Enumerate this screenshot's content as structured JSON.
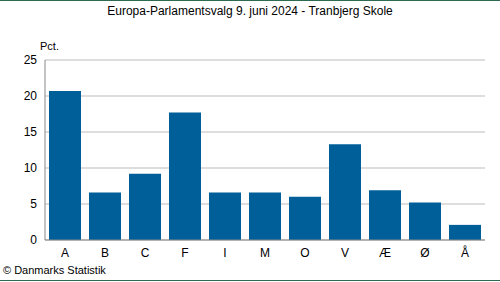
{
  "chart_data": {
    "type": "bar",
    "title": "Europa-Parlamentsvalg 9. juni 2024 - Tranbjerg Skole",
    "y_label": "Pct.",
    "source": "© Danmarks Statistik",
    "categories": [
      "A",
      "B",
      "C",
      "F",
      "I",
      "M",
      "O",
      "V",
      "Æ",
      "Ø",
      "Å"
    ],
    "values": [
      20.7,
      6.6,
      9.2,
      17.7,
      6.6,
      6.6,
      6.0,
      13.3,
      6.9,
      5.2,
      2.1
    ],
    "color": "#005f99",
    "ylim": [
      0,
      25
    ],
    "yticks": [
      0,
      5,
      10,
      15,
      20,
      25
    ],
    "grid": true
  }
}
